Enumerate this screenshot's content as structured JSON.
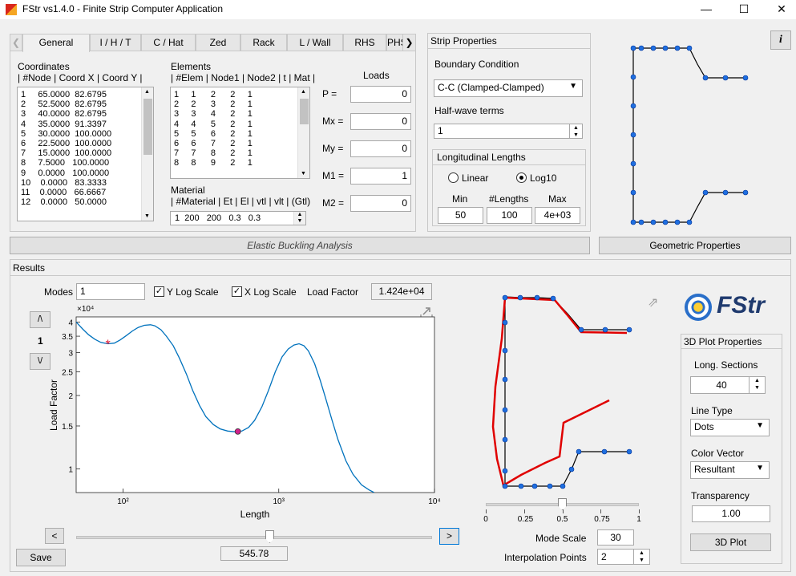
{
  "window": {
    "title": "FStr vs1.4.0  -  Finite Strip Computer Application",
    "minimize": "—",
    "maximize": "☐",
    "close": "✕"
  },
  "tabs": [
    "General",
    "I / H / T",
    "C / Hat",
    "Zed",
    "Rack",
    "L / Wall",
    "RHS",
    "PHS"
  ],
  "tab_nav": {
    "prev": "❮",
    "next": "❯"
  },
  "general": {
    "coords_title": "Coordinates",
    "coords_header": "| #Node | Coord X |  Coord Y |",
    "coords_rows": [
      "1     65.0000  82.6795",
      "2     52.5000  82.6795",
      "3     40.0000  82.6795",
      "4     35.0000  91.3397",
      "5     30.0000  100.0000",
      "6     22.5000  100.0000",
      "7     15.0000  100.0000",
      "8     7.5000   100.0000",
      "9     0.0000   100.0000",
      "10    0.0000   83.3333",
      "11    0.0000   66.6667",
      "12    0.0000   50.0000"
    ],
    "elements_title": "Elements",
    "elements_header": "| #Elem | Node1 | Node2 | t | Mat |",
    "elements_rows": [
      "1     1      2      2     1",
      "2     2      3      2     1",
      "3     3      4      2     1",
      "4     4      5      2     1",
      "5     5      6      2     1",
      "6     6      7      2     1",
      "7     7      8      2     1",
      "8     8      9      2     1"
    ],
    "material_title": "Material",
    "material_header": "| #Material | Et | El | vtl | vlt | (Gtl)",
    "material_value": " 1  200   200   0.3   0.3",
    "loads_title": "Loads",
    "loads": [
      {
        "label": "P =",
        "value": "0"
      },
      {
        "label": "Mx =",
        "value": "0"
      },
      {
        "label": "My =",
        "value": "0"
      },
      {
        "label": "M1 =",
        "value": "1"
      },
      {
        "label": "M2 =",
        "value": "0"
      }
    ]
  },
  "strip": {
    "title": "Strip Properties",
    "bc_label": "Boundary Condition",
    "bc_value": "C-C (Clamped-Clamped)",
    "hw_label": "Half-wave terms",
    "hw_value": "1",
    "long_title": "Longitudinal Lengths",
    "linear": "Linear",
    "log10": "Log10",
    "min_label": "Min",
    "min_value": "50",
    "n_label": "#Lengths",
    "n_value": "100",
    "max_label": "Max",
    "max_value": "4e+03"
  },
  "info_button": "i",
  "elastic_button": "Elastic Buckling Analysis",
  "geo_button": "Geometric Properties",
  "results": {
    "title": "Results",
    "modes_label": "Modes",
    "modes_value": "1",
    "ylog": "Y Log Scale",
    "xlog": "X Log Scale",
    "lf_label": "Load Factor",
    "lf_value": "1.424e+04",
    "mode_up": "/\\",
    "mode_num": "1",
    "mode_down": "\\/",
    "prev": "<",
    "next": ">",
    "slider_value": "545.78",
    "save": "Save"
  },
  "chart_data": {
    "type": "line",
    "xlabel": "Length",
    "ylabel": "Load Factor",
    "exponent_label": "×10⁴",
    "xscale": "log",
    "yscale": "log",
    "xlim": [
      50,
      10000
    ],
    "ylim": [
      0.8,
      4.2
    ],
    "x_ticks": [
      {
        "v": 100,
        "label": "10²"
      },
      {
        "v": 1000,
        "label": "10³"
      },
      {
        "v": 10000,
        "label": "10⁴"
      }
    ],
    "y_ticks": [
      {
        "v": 1,
        "label": "1"
      },
      {
        "v": 1.5,
        "label": "1.5"
      },
      {
        "v": 2,
        "label": "2"
      },
      {
        "v": 2.5,
        "label": "2.5"
      },
      {
        "v": 3,
        "label": "3"
      },
      {
        "v": 3.5,
        "label": "3.5"
      },
      {
        "v": 4,
        "label": "4"
      }
    ],
    "series": [
      {
        "x": [
          50,
          55,
          60,
          66,
          72,
          80,
          88,
          96,
          105,
          115,
          125,
          137,
          150,
          160,
          175,
          190,
          210,
          230,
          255,
          280,
          310,
          340,
          380,
          420,
          470,
          520,
          546,
          580,
          640,
          700,
          780,
          860,
          950,
          1050,
          1150,
          1250,
          1350,
          1450,
          1550,
          1700,
          1850,
          2000,
          2200,
          2400,
          2700,
          3000,
          3400,
          3800,
          4100
        ],
        "y": [
          4.0,
          3.75,
          3.55,
          3.4,
          3.3,
          3.26,
          3.28,
          3.38,
          3.52,
          3.68,
          3.8,
          3.88,
          3.9,
          3.86,
          3.72,
          3.5,
          3.2,
          2.85,
          2.45,
          2.1,
          1.82,
          1.64,
          1.52,
          1.46,
          1.43,
          1.42,
          1.424,
          1.43,
          1.48,
          1.58,
          1.8,
          2.1,
          2.5,
          2.88,
          3.1,
          3.22,
          3.26,
          3.2,
          3.05,
          2.7,
          2.3,
          1.95,
          1.58,
          1.32,
          1.08,
          0.95,
          0.86,
          0.82,
          0.8
        ]
      }
    ],
    "markers": [
      {
        "x": 80,
        "y": 3.26,
        "kind": "asterisk",
        "color": "#e0112b"
      },
      {
        "x": 546,
        "y": 1.424,
        "kind": "circle",
        "color": "#d0208b"
      }
    ],
    "line_color": "#0072bd"
  },
  "mode_plot": {
    "scale_ticks": [
      "0",
      "0.25",
      "0.5",
      "0.75",
      "1"
    ],
    "mode_scale_label": "Mode Scale",
    "mode_scale_value": "30",
    "interp_label": "Interpolation Points",
    "interp_value": "2"
  },
  "logo": {
    "text": "FStr"
  },
  "plot3d": {
    "title": "3D Plot Properties",
    "sections_label": "Long. Sections",
    "sections_value": "40",
    "linetype_label": "Line Type",
    "linetype_value": "Dots",
    "color_label": "Color Vector",
    "color_value": "Resultant",
    "transp_label": "Transparency",
    "transp_value": "1.00",
    "button": "3D Plot"
  }
}
